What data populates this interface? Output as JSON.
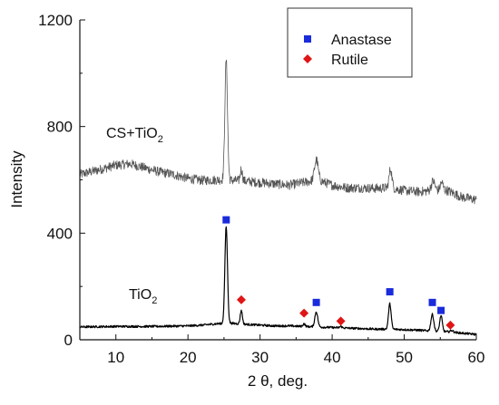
{
  "chart_data": {
    "type": "line",
    "title": "",
    "xlabel": "2 θ, deg.",
    "ylabel": "Intensity",
    "xlim": [
      5,
      60
    ],
    "ylim": [
      0,
      1200
    ],
    "xticks": [
      10,
      20,
      30,
      40,
      50,
      60
    ],
    "yticks": [
      0,
      400,
      800,
      1200
    ],
    "grid": false,
    "legend_position": "top-right",
    "legend": [
      {
        "label": "Anastase",
        "marker": "square",
        "color": "#1a2bdc"
      },
      {
        "label": "Rutile",
        "marker": "diamond",
        "color": "#e01515"
      }
    ],
    "series": [
      {
        "name": "CS+TiO2",
        "label_main": "CS+TiO",
        "label_sub": "2",
        "color": "#555555",
        "baseline": [
          [
            5,
            620
          ],
          [
            8,
            640
          ],
          [
            10,
            655
          ],
          [
            12,
            660
          ],
          [
            14,
            645
          ],
          [
            16,
            630
          ],
          [
            18,
            620
          ],
          [
            20,
            605
          ],
          [
            22,
            598
          ],
          [
            24,
            600
          ],
          [
            26,
            598
          ],
          [
            28,
            595
          ],
          [
            30,
            590
          ],
          [
            32,
            585
          ],
          [
            34,
            580
          ],
          [
            36,
            590
          ],
          [
            38,
            600
          ],
          [
            40,
            580
          ],
          [
            42,
            570
          ],
          [
            44,
            570
          ],
          [
            46,
            568
          ],
          [
            48,
            570
          ],
          [
            50,
            560
          ],
          [
            52,
            555
          ],
          [
            54,
            560
          ],
          [
            56,
            560
          ],
          [
            58,
            535
          ],
          [
            60,
            525
          ]
        ],
        "peaks": [
          [
            25.3,
            1050,
            0.18
          ],
          [
            27.4,
            640,
            0.15
          ],
          [
            37.8,
            675,
            0.25
          ],
          [
            48.1,
            640,
            0.2
          ],
          [
            54.0,
            595,
            0.25
          ],
          [
            55.2,
            590,
            0.2
          ]
        ],
        "noise": 18
      },
      {
        "name": "TiO2",
        "label_main": "TiO",
        "label_sub": "2",
        "color": "#000000",
        "baseline": [
          [
            5,
            48
          ],
          [
            10,
            50
          ],
          [
            15,
            50
          ],
          [
            20,
            52
          ],
          [
            22,
            55
          ],
          [
            24,
            60
          ],
          [
            26,
            62
          ],
          [
            28,
            58
          ],
          [
            30,
            55
          ],
          [
            32,
            52
          ],
          [
            34,
            52
          ],
          [
            36,
            50
          ],
          [
            38,
            48
          ],
          [
            40,
            46
          ],
          [
            42,
            44
          ],
          [
            44,
            42
          ],
          [
            46,
            40
          ],
          [
            48,
            40
          ],
          [
            50,
            38
          ],
          [
            52,
            36
          ],
          [
            54,
            32
          ],
          [
            56,
            30
          ],
          [
            58,
            25
          ],
          [
            60,
            20
          ]
        ],
        "peaks": [
          [
            25.3,
            425,
            0.18
          ],
          [
            27.4,
            110,
            0.15
          ],
          [
            36.1,
            60,
            0.15
          ],
          [
            37.8,
            105,
            0.2
          ],
          [
            41.2,
            50,
            0.15
          ],
          [
            48.0,
            135,
            0.18
          ],
          [
            53.9,
            95,
            0.2
          ],
          [
            55.1,
            90,
            0.18
          ],
          [
            56.6,
            35,
            0.2
          ]
        ],
        "noise": 4
      }
    ],
    "anatase_markers": [
      [
        25.3,
        450
      ],
      [
        37.8,
        140
      ],
      [
        48.0,
        180
      ],
      [
        53.9,
        140
      ],
      [
        55.1,
        110
      ]
    ],
    "rutile_markers": [
      [
        27.4,
        150
      ],
      [
        36.1,
        100
      ],
      [
        41.2,
        70
      ],
      [
        56.4,
        55
      ]
    ]
  }
}
